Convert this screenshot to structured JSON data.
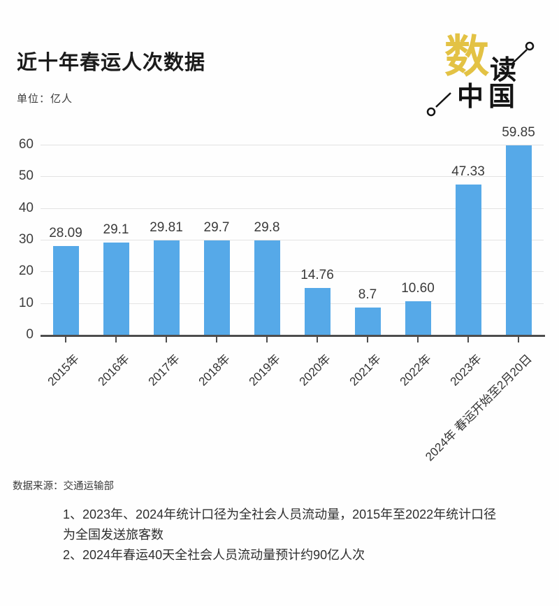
{
  "header": {
    "title": "近十年春运人次数据",
    "unit_label": "单位：亿人"
  },
  "logo": {
    "shu": "数",
    "du": "读",
    "zhongguo": "中国",
    "accent_color": "#e3c244",
    "ink_color": "#141414"
  },
  "chart_data": {
    "type": "bar",
    "title": "近十年春运人次数据",
    "ylabel": "亿人",
    "xlabel": "",
    "categories": [
      "2015年",
      "2016年",
      "2017年",
      "2018年",
      "2019年",
      "2020年",
      "2021年",
      "2022年",
      "2023年",
      "2024年 春运开始至2月20日"
    ],
    "values": [
      28.09,
      29.1,
      29.81,
      29.7,
      29.8,
      14.76,
      8.7,
      10.6,
      47.33,
      59.85
    ],
    "value_labels": [
      "28.09",
      "29.1",
      "29.81",
      "29.7",
      "29.8",
      "14.76",
      "8.7",
      "10.60",
      "47.33",
      "59.85"
    ],
    "ylim": [
      0,
      60
    ],
    "yticks": [
      0,
      10,
      20,
      30,
      40,
      50,
      60
    ],
    "grid": true,
    "legend_position": "none",
    "bar_color": "#56a9e8",
    "gridline_color": "#e3e3e3",
    "axis_color": "#4d4d4d"
  },
  "footer": {
    "source": "数据来源：交通运输部",
    "notes": [
      "1、2023年、2024年统计口径为全社会人员流动量，2015年至2022年统计口径",
      "为全国发送旅客数",
      "2、2024年春运40天全社会人员流动量预计约90亿人次"
    ]
  }
}
